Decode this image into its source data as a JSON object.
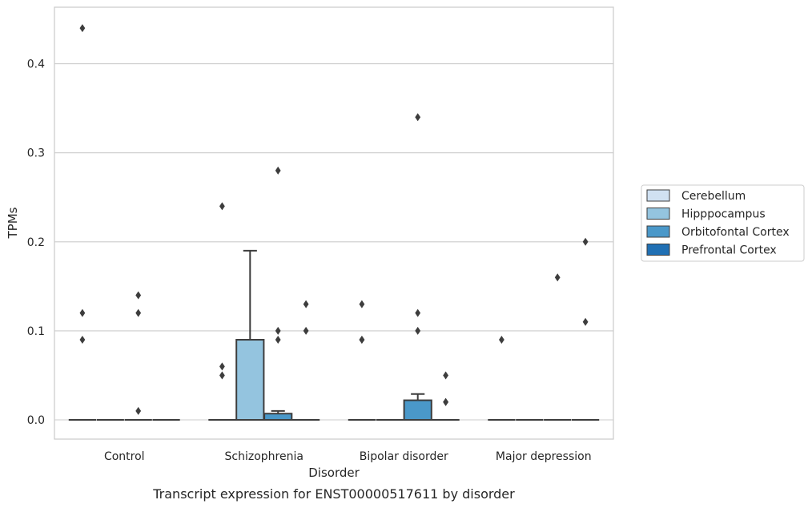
{
  "caption": "Transcript expression for ENST00000517611 by disorder",
  "chart_data": {
    "type": "box",
    "xlabel": "Disorder",
    "ylabel": "TPMs",
    "ylim": [
      -0.021,
      0.465
    ],
    "yticks": [
      0.0,
      0.1,
      0.2,
      0.3,
      0.4
    ],
    "ytick_labels": [
      "0.0",
      "0.1",
      "0.2",
      "0.3",
      "0.4"
    ],
    "grid": "horizontal",
    "legend_position": "right",
    "categories": [
      "Control",
      "Schizophrenia",
      "Bipolar disorder",
      "Major depression"
    ],
    "series": [
      {
        "name": "Cerebellum",
        "color": "#d0e1f2",
        "boxes": [
          {
            "q1": 0,
            "median": 0,
            "q3": 0,
            "whisker_low": 0,
            "whisker_high": 0,
            "outliers": [
              0.44,
              0.12,
              0.09
            ]
          },
          {
            "q1": 0,
            "median": 0,
            "q3": 0,
            "whisker_low": 0,
            "whisker_high": 0,
            "outliers": [
              0.24,
              0.06,
              0.05
            ]
          },
          {
            "q1": 0,
            "median": 0,
            "q3": 0,
            "whisker_low": 0,
            "whisker_high": 0,
            "outliers": [
              0.13,
              0.09,
              0.09
            ]
          },
          {
            "q1": 0,
            "median": 0,
            "q3": 0,
            "whisker_low": 0,
            "whisker_high": 0,
            "outliers": [
              0.09
            ]
          }
        ]
      },
      {
        "name": "Hipppocampus",
        "color": "#94c4df",
        "boxes": [
          {
            "q1": 0,
            "median": 0,
            "q3": 0,
            "whisker_low": 0,
            "whisker_high": 0,
            "outliers": []
          },
          {
            "q1": 0,
            "median": 0,
            "q3": 0.09,
            "whisker_low": 0,
            "whisker_high": 0.19,
            "outliers": []
          },
          {
            "q1": 0,
            "median": 0,
            "q3": 0,
            "whisker_low": 0,
            "whisker_high": 0,
            "outliers": []
          },
          {
            "q1": 0,
            "median": 0,
            "q3": 0,
            "whisker_low": 0,
            "whisker_high": 0,
            "outliers": []
          }
        ]
      },
      {
        "name": "Orbitofontal Cortex",
        "color": "#4a98c9",
        "boxes": [
          {
            "q1": 0,
            "median": 0,
            "q3": 0,
            "whisker_low": 0,
            "whisker_high": 0,
            "outliers": [
              0.14,
              0.12,
              0.01
            ]
          },
          {
            "q1": 0,
            "median": 0,
            "q3": 0.007,
            "whisker_low": 0,
            "whisker_high": 0.01,
            "outliers": [
              0.28,
              0.1,
              0.09
            ]
          },
          {
            "q1": 0,
            "median": 0,
            "q3": 0.022,
            "whisker_low": 0,
            "whisker_high": 0.029,
            "outliers": [
              0.34,
              0.12,
              0.1
            ]
          },
          {
            "q1": 0,
            "median": 0,
            "q3": 0,
            "whisker_low": 0,
            "whisker_high": 0,
            "outliers": [
              0.16
            ]
          }
        ]
      },
      {
        "name": "Prefrontal Cortex",
        "color": "#2070b4",
        "boxes": [
          {
            "q1": 0,
            "median": 0,
            "q3": 0,
            "whisker_low": 0,
            "whisker_high": 0,
            "outliers": []
          },
          {
            "q1": 0,
            "median": 0,
            "q3": 0,
            "whisker_low": 0,
            "whisker_high": 0,
            "outliers": [
              0.13,
              0.1
            ]
          },
          {
            "q1": 0,
            "median": 0,
            "q3": 0,
            "whisker_low": 0,
            "whisker_high": 0,
            "outliers": [
              0.05,
              0.02,
              0.02
            ]
          },
          {
            "q1": 0,
            "median": 0,
            "q3": 0,
            "whisker_low": 0,
            "whisker_high": 0,
            "outliers": [
              0.2,
              0.11
            ]
          }
        ]
      }
    ]
  }
}
